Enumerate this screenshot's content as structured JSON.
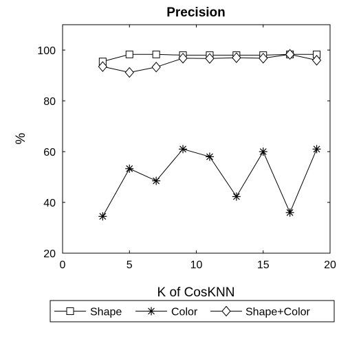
{
  "chart_data": {
    "type": "line",
    "title": "Precision",
    "xlabel": "K of CosKNN",
    "ylabel": "%",
    "xlim": [
      0,
      20
    ],
    "ylim": [
      20,
      110
    ],
    "xticks": [
      0,
      5,
      10,
      15,
      20
    ],
    "yticks": [
      20,
      40,
      60,
      80,
      100
    ],
    "grid": false,
    "legend_position": "bottom-outside",
    "x": [
      3,
      5,
      7,
      9,
      11,
      13,
      15,
      17,
      19
    ],
    "series": [
      {
        "name": "Shape",
        "marker": "square",
        "values": [
          95.5,
          98.3,
          98.3,
          98.0,
          98.0,
          98.0,
          98.0,
          98.3,
          98.3
        ]
      },
      {
        "name": "Color",
        "marker": "asterisk",
        "values": [
          34.5,
          53.3,
          48.5,
          61.0,
          58.0,
          42.3,
          60.0,
          36.0,
          61.0
        ]
      },
      {
        "name": "Shape+Color",
        "marker": "diamond",
        "values": [
          93.5,
          91.2,
          93.3,
          96.8,
          96.7,
          97.0,
          96.8,
          98.3,
          96.0
        ]
      }
    ],
    "colors": {
      "line": "#000000",
      "marker_fill": "#ffffff"
    }
  }
}
